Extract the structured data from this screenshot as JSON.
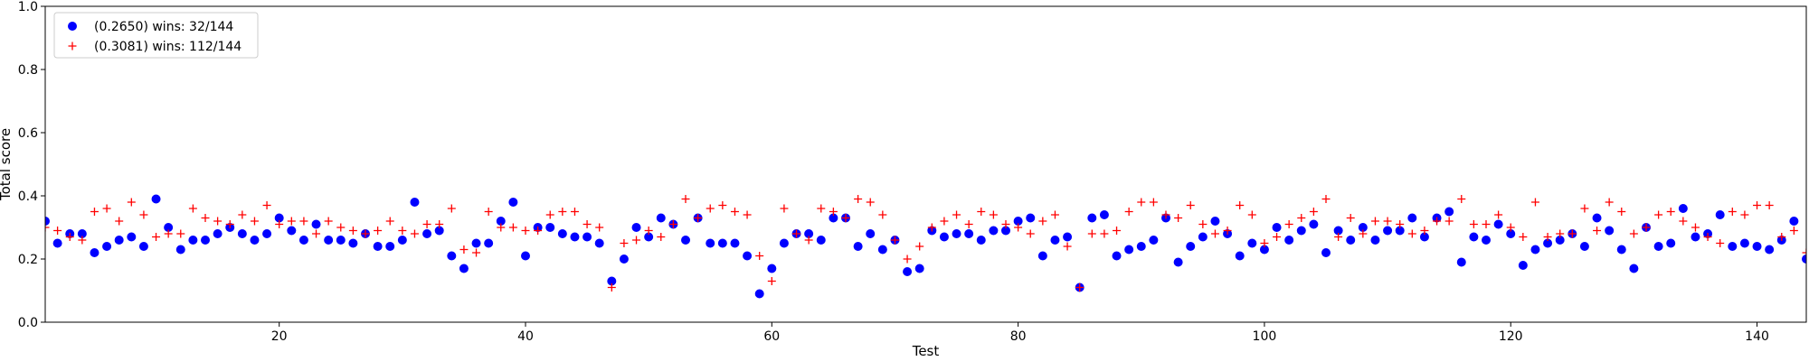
{
  "chart_data": {
    "type": "scatter",
    "xlabel": "Test",
    "ylabel": "Total score",
    "xlim": [
      1,
      144
    ],
    "ylim": [
      0,
      1
    ],
    "xticks": [
      20,
      40,
      60,
      80,
      100,
      120,
      140
    ],
    "yticks": [
      0.0,
      0.2,
      0.4,
      0.6,
      0.8,
      1.0
    ],
    "xtick_labels": [
      "20",
      "40",
      "60",
      "80",
      "100",
      "120",
      "140"
    ],
    "ytick_labels": [
      "0.0",
      "0.2",
      "0.4",
      "0.6",
      "0.8",
      "1.0"
    ],
    "grid": false,
    "legend_position": "top-left",
    "x": [
      1,
      2,
      3,
      4,
      5,
      6,
      7,
      8,
      9,
      10,
      11,
      12,
      13,
      14,
      15,
      16,
      17,
      18,
      19,
      20,
      21,
      22,
      23,
      24,
      25,
      26,
      27,
      28,
      29,
      30,
      31,
      32,
      33,
      34,
      35,
      36,
      37,
      38,
      39,
      40,
      41,
      42,
      43,
      44,
      45,
      46,
      47,
      48,
      49,
      50,
      51,
      52,
      53,
      54,
      55,
      56,
      57,
      58,
      59,
      60,
      61,
      62,
      63,
      64,
      65,
      66,
      67,
      68,
      69,
      70,
      71,
      72,
      73,
      74,
      75,
      76,
      77,
      78,
      79,
      80,
      81,
      82,
      83,
      84,
      85,
      86,
      87,
      88,
      89,
      90,
      91,
      92,
      93,
      94,
      95,
      96,
      97,
      98,
      99,
      100,
      101,
      102,
      103,
      104,
      105,
      106,
      107,
      108,
      109,
      110,
      111,
      112,
      113,
      114,
      115,
      116,
      117,
      118,
      119,
      120,
      121,
      122,
      123,
      124,
      125,
      126,
      127,
      128,
      129,
      130,
      131,
      132,
      133,
      134,
      135,
      136,
      137,
      138,
      139,
      140,
      141,
      142,
      143,
      144
    ],
    "series": [
      {
        "name": "(0.2650) wins: 32/144",
        "marker": "circle",
        "color": "#0000ff",
        "values": [
          0.32,
          0.25,
          0.28,
          0.28,
          0.22,
          0.24,
          0.26,
          0.27,
          0.24,
          0.39,
          0.3,
          0.23,
          0.26,
          0.26,
          0.28,
          0.3,
          0.28,
          0.26,
          0.28,
          0.33,
          0.29,
          0.26,
          0.31,
          0.26,
          0.26,
          0.25,
          0.28,
          0.24,
          0.24,
          0.26,
          0.38,
          0.28,
          0.29,
          0.21,
          0.17,
          0.25,
          0.25,
          0.32,
          0.38,
          0.21,
          0.3,
          0.3,
          0.28,
          0.27,
          0.27,
          0.25,
          0.13,
          0.2,
          0.3,
          0.27,
          0.33,
          0.31,
          0.26,
          0.33,
          0.25,
          0.25,
          0.25,
          0.21,
          0.09,
          0.17,
          0.25,
          0.28,
          0.28,
          0.26,
          0.33,
          0.33,
          0.24,
          0.28,
          0.23,
          0.26,
          0.16,
          0.17,
          0.29,
          0.27,
          0.28,
          0.28,
          0.26,
          0.29,
          0.29,
          0.32,
          0.33,
          0.21,
          0.26,
          0.27,
          0.11,
          0.33,
          0.34,
          0.21,
          0.23,
          0.24,
          0.26,
          0.33,
          0.19,
          0.24,
          0.27,
          0.32,
          0.28,
          0.21,
          0.25,
          0.23,
          0.3,
          0.26,
          0.29,
          0.31,
          0.22,
          0.29,
          0.26,
          0.3,
          0.26,
          0.29,
          0.29,
          0.33,
          0.27,
          0.33,
          0.35,
          0.19,
          0.27,
          0.26,
          0.31,
          0.28,
          0.18,
          0.23,
          0.25,
          0.26,
          0.28,
          0.24,
          0.33,
          0.29,
          0.23,
          0.17,
          0.3,
          0.24,
          0.25,
          0.36,
          0.27,
          0.28,
          0.34,
          0.24,
          0.25,
          0.24,
          0.23,
          0.26,
          0.32,
          0.2
        ]
      },
      {
        "name": "(0.3081) wins: 112/144",
        "marker": "plus",
        "color": "#ff0000",
        "values": [
          0.3,
          0.29,
          0.27,
          0.26,
          0.35,
          0.36,
          0.32,
          0.38,
          0.34,
          0.27,
          0.28,
          0.28,
          0.36,
          0.33,
          0.32,
          0.31,
          0.34,
          0.32,
          0.37,
          0.31,
          0.32,
          0.32,
          0.28,
          0.32,
          0.3,
          0.29,
          0.28,
          0.29,
          0.32,
          0.29,
          0.28,
          0.31,
          0.31,
          0.36,
          0.23,
          0.22,
          0.35,
          0.3,
          0.3,
          0.29,
          0.29,
          0.34,
          0.35,
          0.35,
          0.31,
          0.3,
          0.11,
          0.25,
          0.26,
          0.29,
          0.27,
          0.31,
          0.39,
          0.33,
          0.36,
          0.37,
          0.35,
          0.34,
          0.21,
          0.13,
          0.36,
          0.28,
          0.26,
          0.36,
          0.35,
          0.33,
          0.39,
          0.38,
          0.34,
          0.26,
          0.2,
          0.24,
          0.3,
          0.32,
          0.34,
          0.31,
          0.35,
          0.34,
          0.31,
          0.3,
          0.28,
          0.32,
          0.34,
          0.24,
          0.11,
          0.28,
          0.28,
          0.29,
          0.35,
          0.38,
          0.38,
          0.34,
          0.33,
          0.37,
          0.31,
          0.28,
          0.29,
          0.37,
          0.34,
          0.25,
          0.27,
          0.31,
          0.33,
          0.35,
          0.39,
          0.27,
          0.33,
          0.28,
          0.32,
          0.32,
          0.31,
          0.28,
          0.29,
          0.32,
          0.32,
          0.39,
          0.31,
          0.31,
          0.34,
          0.3,
          0.27,
          0.38,
          0.27,
          0.28,
          0.28,
          0.36,
          0.29,
          0.38,
          0.35,
          0.28,
          0.3,
          0.34,
          0.35,
          0.32,
          0.3,
          0.27,
          0.25,
          0.35,
          0.34,
          0.37,
          0.37,
          0.27,
          0.29,
          0.22
        ]
      }
    ]
  }
}
